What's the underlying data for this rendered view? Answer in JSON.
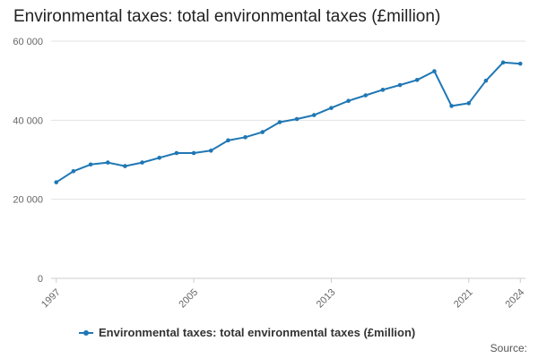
{
  "chart_data": {
    "type": "line",
    "title": "Environmental taxes: total environmental taxes (£million)",
    "xlabel": "",
    "ylabel": "",
    "ylim": [
      0,
      60000
    ],
    "yticks": [
      0,
      20000,
      40000,
      60000
    ],
    "ytick_labels": [
      "0",
      "20 000",
      "40 000",
      "60 000"
    ],
    "xticks": [
      1997,
      2005,
      2013,
      2021,
      2024
    ],
    "xtick_labels": [
      "1997",
      "2005",
      "2013",
      "2021",
      "2024"
    ],
    "grid": true,
    "legend_position": "bottom",
    "series": [
      {
        "name": "Environmental taxes: total environmental taxes (£million)",
        "color": "#1f77b4",
        "x": [
          1997,
          1998,
          1999,
          2000,
          2001,
          2002,
          2003,
          2004,
          2005,
          2006,
          2007,
          2008,
          2009,
          2010,
          2011,
          2012,
          2013,
          2014,
          2015,
          2016,
          2017,
          2018,
          2019,
          2020,
          2021,
          2022,
          2023,
          2024
        ],
        "values": [
          24300,
          27100,
          28800,
          29300,
          28400,
          29300,
          30500,
          31700,
          31700,
          32300,
          34900,
          35700,
          37000,
          39500,
          40300,
          41300,
          43100,
          44900,
          46300,
          47700,
          48900,
          50200,
          52400,
          43600,
          44300,
          50000,
          54600,
          54300
        ]
      }
    ]
  },
  "footer": {
    "source_label": "Source:"
  }
}
